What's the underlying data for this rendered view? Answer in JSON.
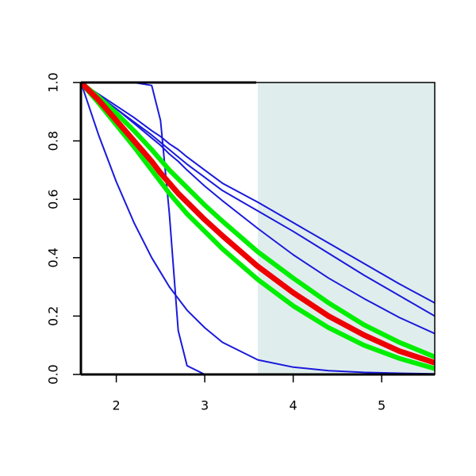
{
  "chart_data": {
    "type": "line",
    "x": [
      1.6,
      1.8,
      2.0,
      2.2,
      2.4,
      2.5,
      2.6,
      2.7,
      2.8,
      3.0,
      3.2,
      3.6,
      4.0,
      4.4,
      4.8,
      5.2,
      5.6
    ],
    "series": [
      {
        "color": "#1a1adb",
        "linewidth": 2,
        "values": [
          1,
          1,
          1,
          1,
          0.99,
          0.87,
          0.55,
          0.15,
          0.03,
          0,
          0,
          0,
          0,
          0,
          0,
          0,
          0
        ]
      },
      {
        "color": "#1a1adb",
        "linewidth": 2,
        "values": [
          1,
          0.82,
          0.66,
          0.52,
          0.4,
          0.35,
          0.3,
          0.26,
          0.22,
          0.16,
          0.11,
          0.05,
          0.025,
          0.013,
          0.007,
          0.004,
          0.002
        ]
      },
      {
        "color": "#1a1adb",
        "linewidth": 2,
        "values": [
          1,
          0.96,
          0.92,
          0.88,
          0.835,
          0.815,
          0.79,
          0.77,
          0.745,
          0.7,
          0.655,
          0.59,
          0.52,
          0.45,
          0.38,
          0.31,
          0.245
        ]
      },
      {
        "color": "#1a1adb",
        "linewidth": 2,
        "values": [
          1,
          0.955,
          0.91,
          0.865,
          0.82,
          0.795,
          0.77,
          0.745,
          0.72,
          0.675,
          0.63,
          0.56,
          0.49,
          0.415,
          0.34,
          0.27,
          0.2
        ]
      },
      {
        "color": "#1a1adb",
        "linewidth": 2,
        "values": [
          1,
          0.955,
          0.91,
          0.86,
          0.81,
          0.785,
          0.755,
          0.73,
          0.7,
          0.645,
          0.595,
          0.5,
          0.41,
          0.33,
          0.26,
          0.195,
          0.14
        ]
      },
      {
        "color": "#00ee00",
        "linewidth": 6,
        "values": [
          1,
          0.95,
          0.895,
          0.835,
          0.77,
          0.735,
          0.7,
          0.67,
          0.64,
          0.58,
          0.525,
          0.42,
          0.33,
          0.245,
          0.17,
          0.11,
          0.06
        ]
      },
      {
        "color": "#00ee00",
        "linewidth": 6,
        "values": [
          1,
          0.93,
          0.855,
          0.78,
          0.7,
          0.66,
          0.62,
          0.585,
          0.55,
          0.49,
          0.43,
          0.325,
          0.235,
          0.16,
          0.1,
          0.055,
          0.02
        ]
      },
      {
        "color": "#ee0000",
        "linewidth": 7,
        "values": [
          1,
          0.94,
          0.87,
          0.8,
          0.73,
          0.69,
          0.655,
          0.62,
          0.59,
          0.53,
          0.475,
          0.37,
          0.28,
          0.2,
          0.135,
          0.08,
          0.04
        ]
      }
    ],
    "shaded_region": {
      "xmin": 3.6,
      "xmax": 5.6,
      "color": "#e0eded"
    },
    "xlim": [
      1.6,
      5.6
    ],
    "xticks": [
      2,
      3,
      4,
      5
    ],
    "ylim": [
      0,
      1
    ],
    "yticks": [
      {
        "value": 0,
        "label": "0.0"
      },
      0.2,
      0.4,
      0.6,
      0.8,
      {
        "value": 1,
        "label": "1.0"
      }
    ]
  }
}
